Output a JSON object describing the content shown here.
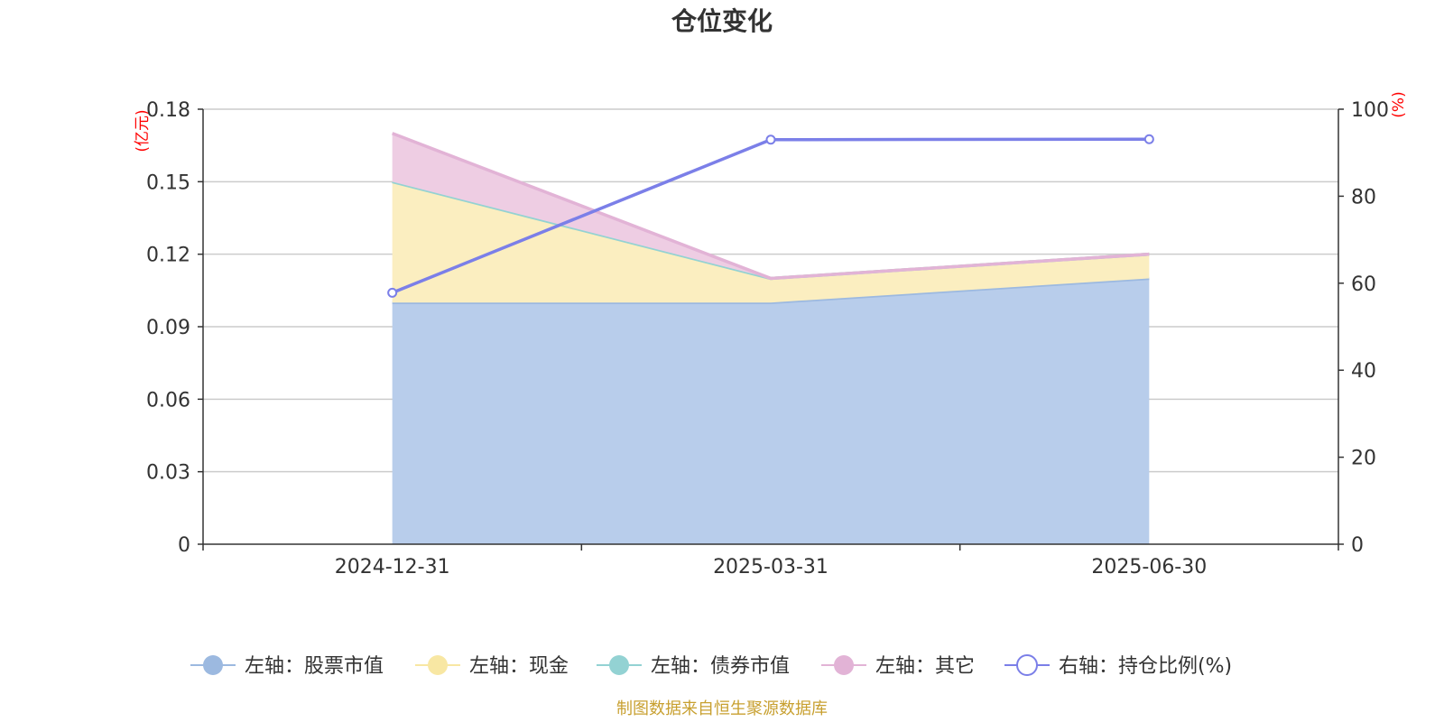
{
  "chart_data": {
    "type": "area",
    "title": "仓位变化",
    "categories": [
      "2024-12-31",
      "2025-03-31",
      "2025-06-30"
    ],
    "left_axis": {
      "unit": "(亿元)",
      "ylim": [
        0,
        0.18
      ],
      "ticks": [
        "0",
        "0.03",
        "0.06",
        "0.09",
        "0.12",
        "0.15",
        "0.18"
      ]
    },
    "right_axis": {
      "unit": "(%)",
      "ylim": [
        0,
        100
      ],
      "ticks": [
        "0",
        "20",
        "40",
        "60",
        "80",
        "100"
      ]
    },
    "stacked_series": [
      {
        "name": "左轴：股票市值",
        "values": [
          0.1,
          0.1,
          0.11
        ],
        "line_color": "#9cb9e0",
        "fill_color": "#b8cdeb"
      },
      {
        "name": "左轴：现金",
        "values": [
          0.05,
          0.01,
          0.01
        ],
        "line_color": "#f8e7a3",
        "fill_color": "#fbeec0"
      },
      {
        "name": "左轴：债券市值",
        "values": [
          0,
          0,
          0
        ],
        "line_color": "#93d2d3",
        "fill_color": "#b7e2e3"
      },
      {
        "name": "左轴：其它",
        "values": [
          0.02,
          0,
          0
        ],
        "line_color": "#e2b3d6",
        "fill_color": "#eecde3"
      }
    ],
    "line_series": {
      "name": "右轴：持仓比例(%)",
      "values": [
        57.8,
        93.0,
        93.1
      ],
      "color": "#7b7fe8"
    },
    "grid": true,
    "legend_position": "bottom-center"
  },
  "source_note": "制图数据来自恒生聚源数据库",
  "source_color": "#c8a030"
}
